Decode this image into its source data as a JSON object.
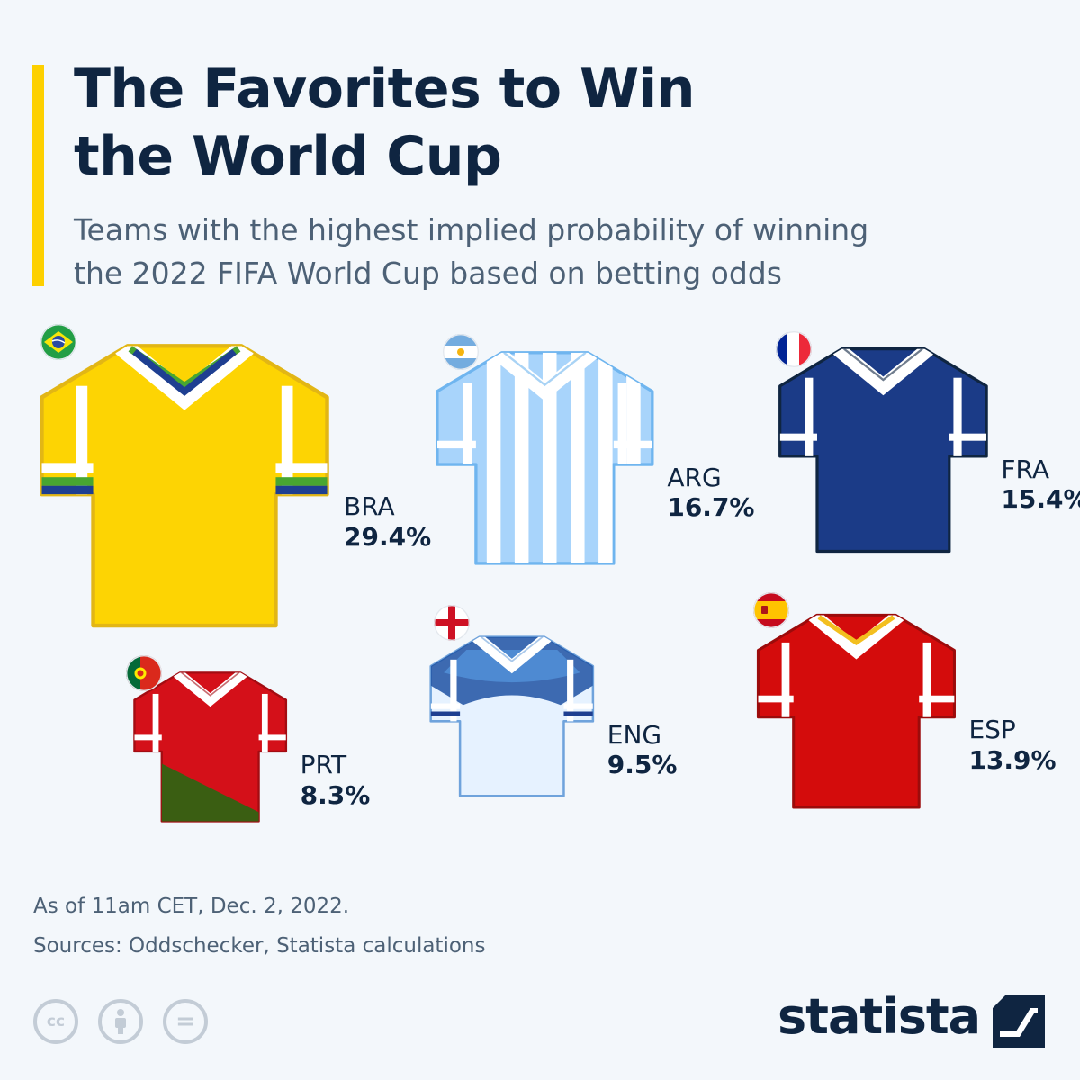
{
  "header": {
    "title": "The Favorites to Win\nthe World Cup",
    "subtitle": "Teams with the highest implied probability of winning\nthe 2022 FIFA World Cup based on betting odds"
  },
  "chart_data": {
    "type": "pictorial",
    "unit": "%",
    "value_label_format": "{value}%",
    "series": [
      {
        "code": "BRA",
        "value": 29.4,
        "flag": "brazil-flag",
        "colors": {
          "shirt": "#fdd403",
          "trim": "#ffffff",
          "collar": [
            "#48a631",
            "#1e3f91"
          ],
          "band": [
            "#48a631",
            "#1e3f91"
          ],
          "outline": "#e2b615"
        }
      },
      {
        "code": "ARG",
        "value": 16.7,
        "flag": "argentina-flag",
        "colors": {
          "shirt": "#a8d4fb",
          "stripe": "#ffffff",
          "trim": "#ffffff",
          "outline": "#6fb5ef"
        }
      },
      {
        "code": "FRA",
        "value": 15.4,
        "flag": "france-flag",
        "colors": {
          "shirt": "#1b3b87",
          "trim": "#ffffff",
          "outline": "#0f2541"
        }
      },
      {
        "code": "PRT",
        "value": 8.3,
        "flag": "portugal-flag",
        "colors": {
          "shirt": "#d41019",
          "lower": "#3a5e12",
          "trim": "#ffffff",
          "outline": "#a30c12"
        }
      },
      {
        "code": "ENG",
        "value": 9.5,
        "flag": "england-flag",
        "colors": {
          "shirt": "#e6f2ff",
          "yoke": "#1e52a3",
          "trim": "#ffffff",
          "band": "#1e3f91",
          "outline": "#6fa3dc"
        }
      },
      {
        "code": "ESP",
        "value": 13.9,
        "flag": "spain-flag",
        "colors": {
          "shirt": "#d40c0c",
          "trim": "#ffffff",
          "collar": "#f3bf1f",
          "outline": "#9c0b0b"
        }
      }
    ]
  },
  "footer": {
    "note": "As of 11am CET, Dec. 2, 2022.",
    "sources": "Sources: Oddschecker, Statista calculations",
    "license_icons": [
      "cc-icon",
      "attribution-icon",
      "no-derivatives-icon"
    ],
    "cc_text": "cc",
    "nd_text": "=",
    "brand": "statista"
  }
}
